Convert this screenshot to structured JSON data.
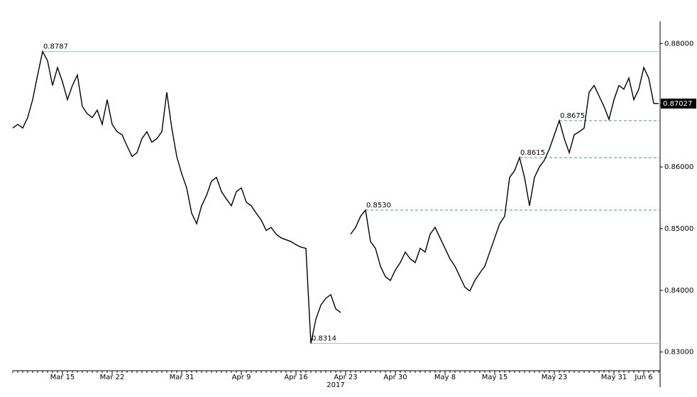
{
  "chart_data": {
    "type": "line",
    "color": "#000000",
    "categories": [
      null,
      null,
      null,
      null,
      null,
      null,
      null,
      null,
      null,
      null,
      "Mar 15",
      null,
      null,
      null,
      null,
      null,
      null,
      null,
      null,
      null,
      "Mar 22",
      null,
      null,
      null,
      null,
      null,
      null,
      null,
      null,
      null,
      null,
      null,
      null,
      null,
      "Mar 31",
      null,
      null,
      null,
      null,
      null,
      null,
      null,
      null,
      null,
      null,
      null,
      "Apr 9",
      null,
      null,
      null,
      null,
      null,
      null,
      null,
      null,
      null,
      null,
      "Apr 16",
      null,
      null,
      null,
      null,
      null,
      null,
      null,
      null,
      null,
      "Apr 23",
      null,
      null,
      null,
      null,
      null,
      null,
      null,
      null,
      null,
      "Apr 30",
      null,
      null,
      null,
      null,
      null,
      null,
      null,
      null,
      null,
      "May 8",
      null,
      null,
      null,
      null,
      null,
      null,
      null,
      null,
      null,
      "May 15",
      null,
      null,
      null,
      null,
      null,
      null,
      null,
      null,
      null,
      null,
      null,
      "May 23",
      null,
      null,
      null,
      null,
      null,
      null,
      null,
      null,
      null,
      null,
      null,
      "May 31",
      null,
      null,
      null,
      null,
      null,
      "Jun 6",
      null,
      null,
      null
    ],
    "x_sublabel": "2017",
    "values": [
      0.8663,
      0.8669,
      0.8663,
      0.868,
      0.8709,
      0.8749,
      0.8787,
      0.8772,
      0.8732,
      0.8761,
      0.8738,
      0.8709,
      0.8732,
      0.8749,
      0.8698,
      0.8686,
      0.868,
      0.8692,
      0.8669,
      0.8709,
      0.8669,
      0.8657,
      0.8652,
      0.8634,
      0.8617,
      0.8623,
      0.8646,
      0.8657,
      0.864,
      0.8646,
      0.8657,
      0.8721,
      0.8663,
      0.8617,
      0.8589,
      0.8566,
      0.8525,
      0.8508,
      0.8537,
      0.8554,
      0.8577,
      0.8583,
      0.856,
      0.8548,
      0.8537,
      0.856,
      0.8566,
      0.8543,
      0.8537,
      0.8525,
      0.8514,
      0.8497,
      0.8502,
      0.8491,
      0.8485,
      0.8482,
      0.8479,
      0.8474,
      0.847,
      0.8468,
      0.8314,
      0.8353,
      0.8376,
      0.8387,
      0.8393,
      0.837,
      0.8364,
      null,
      0.8491,
      0.8502,
      0.852,
      0.853,
      0.8479,
      0.8468,
      0.8439,
      0.8422,
      0.8416,
      0.8433,
      0.8445,
      0.8462,
      0.8451,
      0.8445,
      0.8468,
      0.8462,
      0.8491,
      0.8502,
      0.8485,
      0.8468,
      0.8451,
      0.8439,
      0.8422,
      0.8405,
      0.8399,
      0.8416,
      0.8428,
      0.8439,
      0.8462,
      0.8485,
      0.8508,
      0.852,
      0.8583,
      0.8594,
      0.8615,
      0.8583,
      0.8537,
      0.8583,
      0.86,
      0.8611,
      0.8629,
      0.8652,
      0.8675,
      0.8646,
      0.8623,
      0.8652,
      0.8657,
      0.8663,
      0.8721,
      0.8732,
      0.8715,
      0.8698,
      0.8677,
      0.8709,
      0.8732,
      0.8726,
      0.8744,
      0.8709,
      0.8726,
      0.8761,
      0.8744,
      0.8703,
      0.87027
    ],
    "ylim": [
      0.8272,
      0.8836
    ],
    "yticks": [
      {
        "value": 0.83,
        "label": "0.83000"
      },
      {
        "value": 0.84,
        "label": "0.84000"
      },
      {
        "value": 0.85,
        "label": "0.85000"
      },
      {
        "value": 0.86,
        "label": "0.86000"
      },
      {
        "value": 0.87,
        "label": "0.87000"
      },
      {
        "value": 0.88,
        "label": "0.88000"
      }
    ],
    "levels": [
      {
        "value": 0.8787,
        "label": "0.8787",
        "style": "solid"
      },
      {
        "value": 0.8314,
        "label": "0.8314",
        "style": "solid"
      },
      {
        "value": 0.853,
        "label": "0.8530",
        "style": "dashed"
      },
      {
        "value": 0.8615,
        "label": "0.8615",
        "style": "dashed"
      },
      {
        "value": 0.8675,
        "label": "0.8675",
        "style": "dashed"
      }
    ],
    "last_price": {
      "value": 0.87027,
      "label": "0.87027"
    }
  }
}
